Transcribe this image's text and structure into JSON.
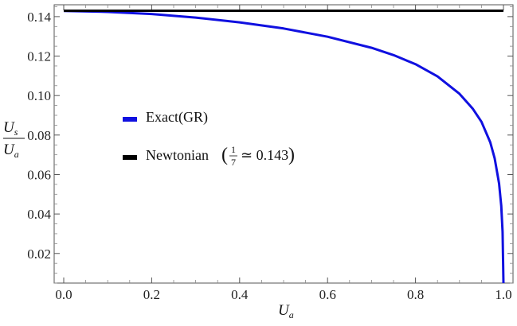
{
  "chart_data": {
    "type": "line",
    "xlabel": "U",
    "xlabel_sub": "a",
    "ylabel_num": "U",
    "ylabel_num_sub": "s",
    "ylabel_den": "U",
    "ylabel_den_sub": "a",
    "xlim": [
      0.0,
      1.0
    ],
    "ylim": [
      0.005,
      0.146
    ],
    "xticks": [
      0.0,
      0.2,
      0.4,
      0.6,
      0.8,
      1.0
    ],
    "xtick_labels": [
      "0.0",
      "0.2",
      "0.4",
      "0.6",
      "0.8",
      "1.0"
    ],
    "yticks": [
      0.02,
      0.04,
      0.06,
      0.08,
      0.1,
      0.12,
      0.14
    ],
    "ytick_labels": [
      "0.02",
      "0.04",
      "0.06",
      "0.08",
      "0.10",
      "0.12",
      "0.14"
    ],
    "grid": false,
    "legend_position": "center-left",
    "series": [
      {
        "name": "Exact(GR)",
        "color": "#1010e0",
        "x": [
          0.0,
          0.1,
          0.2,
          0.3,
          0.4,
          0.5,
          0.6,
          0.7,
          0.75,
          0.8,
          0.85,
          0.9,
          0.93,
          0.95,
          0.97,
          0.98,
          0.99,
          0.995,
          0.998,
          1.0
        ],
        "y": [
          0.1429,
          0.1424,
          0.1413,
          0.1395,
          0.1371,
          0.134,
          0.1298,
          0.1242,
          0.1205,
          0.1159,
          0.1097,
          0.1009,
          0.0934,
          0.0867,
          0.0763,
          0.0682,
          0.0555,
          0.0441,
          0.031,
          0.005
        ]
      },
      {
        "name": "Newtonian",
        "legend_suffix": "≃ 0.143",
        "frac_num": "1",
        "frac_den": "7",
        "color": "#000000",
        "x": [
          0.0,
          1.0
        ],
        "y": [
          0.143,
          0.143
        ]
      }
    ]
  }
}
